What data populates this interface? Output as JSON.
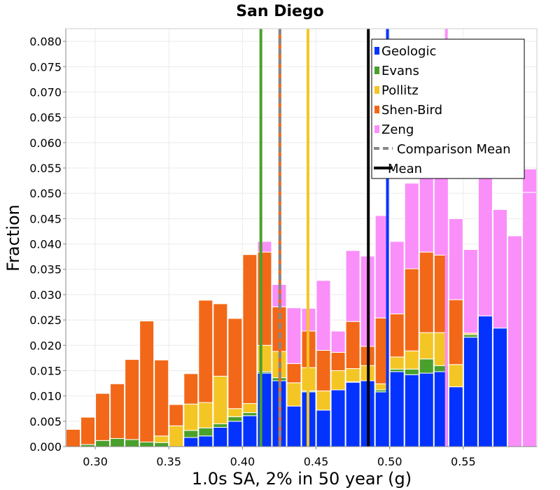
{
  "chart_data": {
    "type": "bar",
    "title": "San Diego",
    "xlabel": "1.0s SA, 2% in 50 year (g)",
    "ylabel": "Fraction",
    "xlim": [
      0.28,
      0.6
    ],
    "ylim": [
      0,
      0.0825
    ],
    "bin_width": 0.01,
    "stacked": true,
    "x_ticks": [
      "0.30",
      "0.35",
      "0.40",
      "0.45",
      "0.50",
      "0.55"
    ],
    "x_tick_values": [
      0.3,
      0.35,
      0.4,
      0.45,
      0.5,
      0.55
    ],
    "y_ticks": [
      "0.000",
      "0.005",
      "0.010",
      "0.015",
      "0.020",
      "0.025",
      "0.030",
      "0.035",
      "0.040",
      "0.045",
      "0.050",
      "0.055",
      "0.060",
      "0.065",
      "0.070",
      "0.075",
      "0.080"
    ],
    "y_tick_values": [
      0,
      0.005,
      0.01,
      0.015,
      0.02,
      0.025,
      0.03,
      0.035,
      0.04,
      0.045,
      0.05,
      0.055,
      0.06,
      0.065,
      0.07,
      0.075,
      0.08
    ],
    "grid": true,
    "legend_position": "top-right",
    "bin_starts": [
      0.28,
      0.29,
      0.3,
      0.31,
      0.32,
      0.33,
      0.34,
      0.35,
      0.36,
      0.37,
      0.38,
      0.39,
      0.4,
      0.41,
      0.42,
      0.43,
      0.44,
      0.45,
      0.46,
      0.47,
      0.48,
      0.49,
      0.5,
      0.51,
      0.52,
      0.53,
      0.54,
      0.55,
      0.56,
      0.57,
      0.58,
      0.59
    ],
    "series": [
      {
        "name": "Geologic",
        "color": "#0433ff",
        "values": [
          0,
          0,
          0,
          0,
          0,
          0,
          0,
          0,
          0.0018,
          0.0021,
          0.0038,
          0.005,
          0.0061,
          0.0145,
          0.013,
          0.008,
          0.0108,
          0.0072,
          0.0112,
          0.0127,
          0.013,
          0.0108,
          0.0148,
          0.0142,
          0.0145,
          0.0148,
          0.0118,
          0.0216,
          0.0258,
          0.0234,
          0,
          0
        ]
      },
      {
        "name": "Evans",
        "color": "#4aa02c",
        "values": [
          0,
          0.0004,
          0.0012,
          0.0016,
          0.0014,
          0.0009,
          0.0008,
          0,
          0.0014,
          0.0016,
          0.0007,
          0.0009,
          0.0006,
          0.0003,
          0.0006,
          0,
          0.0002,
          0,
          0,
          0.0001,
          0,
          0.0004,
          0.0005,
          0.0011,
          0.0028,
          0.0012,
          0,
          0.0005,
          0,
          0,
          0,
          0
        ]
      },
      {
        "name": "Pollitz",
        "color": "#f4c625",
        "values": [
          0,
          0,
          0,
          0,
          0,
          0,
          0.0013,
          0.0041,
          0.0052,
          0.005,
          0.0094,
          0.0016,
          0.0018,
          0.0052,
          0.0052,
          0.0046,
          0.0046,
          0.0038,
          0.0038,
          0.0026,
          0.003,
          0.0012,
          0.0024,
          0.0036,
          0.0052,
          0.0065,
          0.0044,
          0.0003,
          0,
          0,
          0,
          0
        ]
      },
      {
        "name": "Shen-Bird",
        "color": "#f26818",
        "values": [
          0.0034,
          0.0054,
          0.0093,
          0.0108,
          0.0158,
          0.0239,
          0.015,
          0.0042,
          0.006,
          0.0202,
          0.0143,
          0.0178,
          0.0294,
          0.0184,
          0.0088,
          0.0038,
          0.0072,
          0.008,
          0.0036,
          0.0093,
          0.0038,
          0.013,
          0.0085,
          0.0162,
          0.0159,
          0.0153,
          0.0128,
          0,
          0,
          0,
          0,
          0
        ]
      },
      {
        "name": "Zeng",
        "color": "#fa8ffa",
        "values": [
          0,
          0,
          0,
          0,
          0,
          0,
          0,
          0,
          0,
          0,
          0,
          0,
          0,
          0.0021,
          0.0044,
          0.011,
          0.0045,
          0.0138,
          0.0042,
          0.014,
          0.0178,
          0.0202,
          0.0143,
          0.0169,
          0.0197,
          0.0263,
          0.016,
          0.0165,
          0.0365,
          0.0234,
          0.0416,
          0.0502
        ]
      },
      {
        "name": "Zeng",
        "color": "#fa8ffa",
        "values": [
          0,
          0,
          0,
          0,
          0,
          0,
          0,
          0,
          0,
          0,
          0,
          0,
          0,
          0,
          0,
          0,
          0,
          0,
          0,
          0,
          0,
          0,
          0,
          0,
          0,
          0,
          0,
          0,
          0,
          0,
          0,
          0.0046
        ]
      }
    ],
    "mean_lines": [
      {
        "name": "Geologic",
        "x": 0.4985,
        "color": "#0433ff",
        "style": "solid"
      },
      {
        "name": "Evans",
        "x": 0.4125,
        "color": "#4aa02c",
        "style": "solid"
      },
      {
        "name": "Pollitz",
        "x": 0.4445,
        "color": "#f4c625",
        "style": "solid"
      },
      {
        "name": "Shen-Bird",
        "x": 0.4254,
        "color": "#f26818",
        "style": "solid"
      },
      {
        "name": "Zeng",
        "x": 0.5385,
        "color": "#fa8ffa",
        "style": "solid"
      },
      {
        "name": "Comparison Mean",
        "x": 0.4254,
        "color": "#888888",
        "style": "dashed"
      },
      {
        "name": "Mean",
        "x": 0.4855,
        "color": "#000000",
        "style": "solid"
      }
    ],
    "legend": [
      {
        "label": "Geologic",
        "color": "#0433ff",
        "kind": "patch"
      },
      {
        "label": "Evans",
        "color": "#4aa02c",
        "kind": "patch"
      },
      {
        "label": "Pollitz",
        "color": "#f4c625",
        "kind": "patch"
      },
      {
        "label": "Shen-Bird",
        "color": "#f26818",
        "kind": "patch"
      },
      {
        "label": "Zeng",
        "color": "#fa8ffa",
        "kind": "patch"
      },
      {
        "label": "Comparison Mean",
        "color": "#888888",
        "kind": "dashed"
      },
      {
        "label": "Mean",
        "color": "#000000",
        "kind": "line"
      }
    ]
  }
}
